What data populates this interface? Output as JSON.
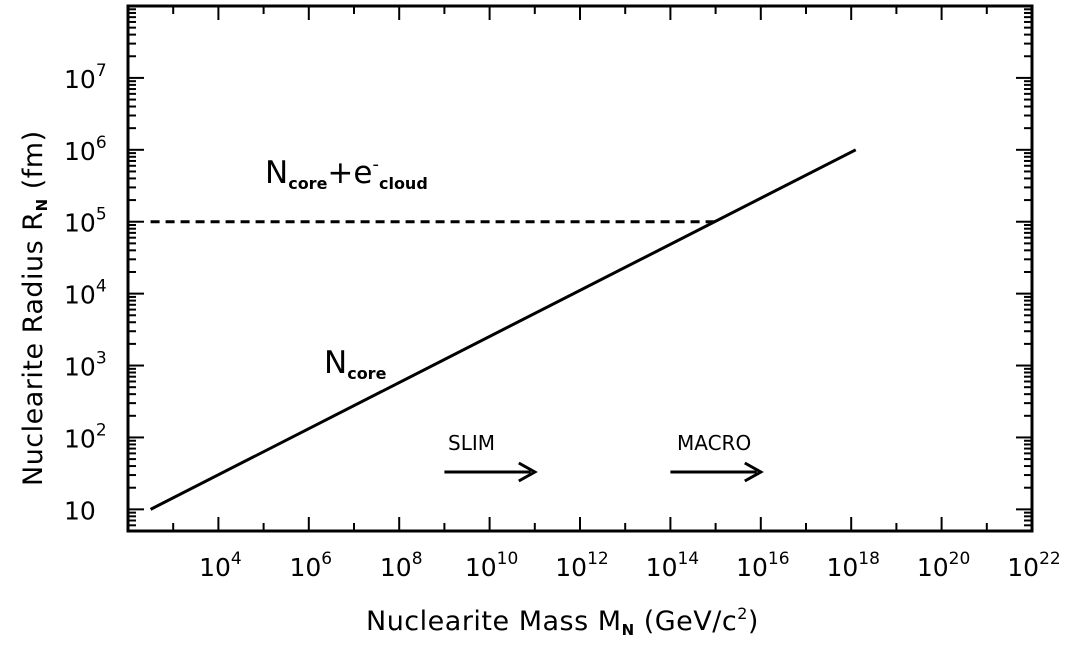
{
  "chart_data": {
    "type": "line",
    "xscale": "log",
    "yscale": "log",
    "xlim": [
      100,
      1e+22
    ],
    "ylim": [
      5,
      100000000.0
    ],
    "x_ticks": [
      {
        "value": 10000.0,
        "base": "10",
        "exp": "4"
      },
      {
        "value": 1000000.0,
        "base": "10",
        "exp": "6"
      },
      {
        "value": 100000000.0,
        "base": "10",
        "exp": "8"
      },
      {
        "value": 10000000000.0,
        "base": "10",
        "exp": "10"
      },
      {
        "value": 1000000000000.0,
        "base": "10",
        "exp": "12"
      },
      {
        "value": 100000000000000.0,
        "base": "10",
        "exp": "14"
      },
      {
        "value": 1e+16,
        "base": "10",
        "exp": "16"
      },
      {
        "value": 1e+18,
        "base": "10",
        "exp": "18"
      },
      {
        "value": 1e+20,
        "base": "10",
        "exp": "20"
      },
      {
        "value": 1e+22,
        "base": "10",
        "exp": "22"
      }
    ],
    "y_ticks": [
      {
        "value": 10,
        "base": "10",
        "exp": ""
      },
      {
        "value": 100,
        "base": "10",
        "exp": "2"
      },
      {
        "value": 1000.0,
        "base": "10",
        "exp": "3"
      },
      {
        "value": 10000.0,
        "base": "10",
        "exp": "4"
      },
      {
        "value": 100000.0,
        "base": "10",
        "exp": "5"
      },
      {
        "value": 1000000.0,
        "base": "10",
        "exp": "6"
      },
      {
        "value": 10000000.0,
        "base": "10",
        "exp": "7"
      }
    ],
    "xlabel": {
      "text": "Nuclearite Mass M",
      "sub": "N",
      "unit_pre": " (GeV/c",
      "sup": "2",
      "unit_post": ")"
    },
    "ylabel": {
      "text": "Nuclearite Radius R",
      "sub": "N",
      "unit": " (fm)"
    },
    "series": [
      {
        "name": "N_core",
        "style": "solid",
        "x": [
          316.0,
          1.26e+18
        ],
        "y": [
          10,
          1000000.0
        ]
      },
      {
        "name": "N_core + e-_cloud",
        "style": "dashed",
        "x": [
          316.0,
          1260000000000000.0
        ],
        "y": [
          100000.0,
          100000.0
        ]
      }
    ],
    "annotations": {
      "cloud": {
        "n": "N",
        "core": "core",
        "plus": "+e",
        "minus": "-",
        "cloud": "cloud"
      },
      "core": {
        "n": "N",
        "sub": "core"
      },
      "slim": {
        "text": "SLIM",
        "arrow_from": 1000000000.0,
        "arrow_to": 100000000000.0
      },
      "macro": {
        "text": "MACRO",
        "arrow_from": 100000000000000.0,
        "arrow_to": 1e+16
      }
    },
    "grid": false,
    "colors": {
      "line": "#000000",
      "background": "#ffffff"
    }
  }
}
